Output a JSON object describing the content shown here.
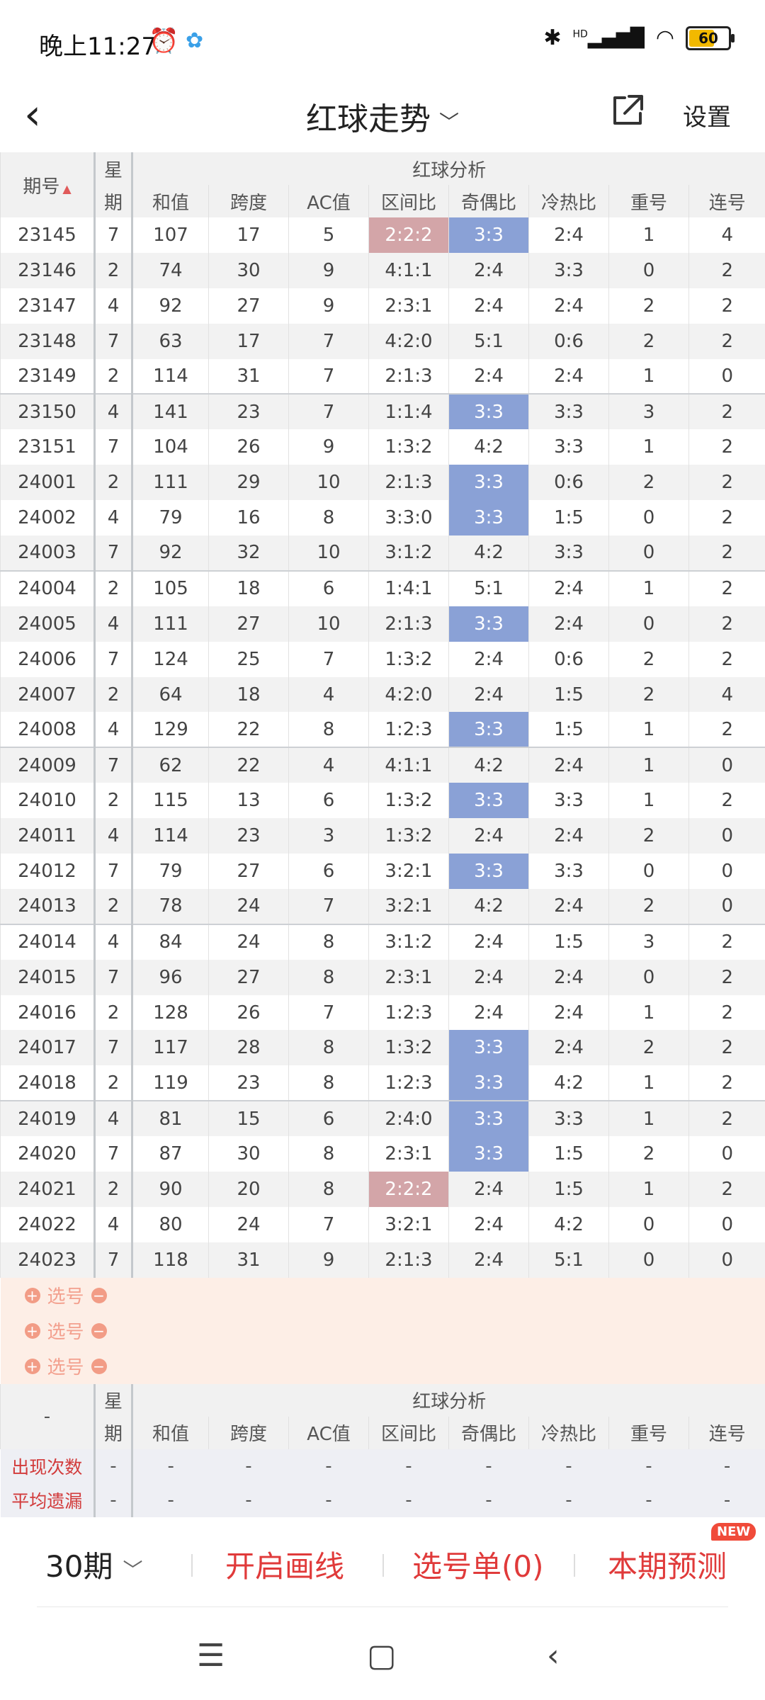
{
  "status": {
    "time": "晚上11:27",
    "battery": "60",
    "signal": "HD"
  },
  "header": {
    "title": "红球走势",
    "settings": "设置"
  },
  "table": {
    "group_title": "红球分析",
    "headers": {
      "period": "期号",
      "week_top": "星",
      "week_bottom": "期",
      "sum": "和值",
      "span": "跨度",
      "ac": "AC值",
      "zone": "区间比",
      "odd_even": "奇偶比",
      "hot_cold": "冷热比",
      "repeat": "重号",
      "consecutive": "连号"
    },
    "rows": [
      [
        "23145",
        "7",
        "107",
        "17",
        "5",
        "2:2:2",
        "3:3",
        "2:4",
        "1",
        "4"
      ],
      [
        "23146",
        "2",
        "74",
        "30",
        "9",
        "4:1:1",
        "2:4",
        "3:3",
        "0",
        "2"
      ],
      [
        "23147",
        "4",
        "92",
        "27",
        "9",
        "2:3:1",
        "2:4",
        "2:4",
        "2",
        "2"
      ],
      [
        "23148",
        "7",
        "63",
        "17",
        "7",
        "4:2:0",
        "5:1",
        "0:6",
        "2",
        "2"
      ],
      [
        "23149",
        "2",
        "114",
        "31",
        "7",
        "2:1:3",
        "2:4",
        "2:4",
        "1",
        "0"
      ],
      [
        "23150",
        "4",
        "141",
        "23",
        "7",
        "1:1:4",
        "3:3",
        "3:3",
        "3",
        "2"
      ],
      [
        "23151",
        "7",
        "104",
        "26",
        "9",
        "1:3:2",
        "4:2",
        "3:3",
        "1",
        "2"
      ],
      [
        "24001",
        "2",
        "111",
        "29",
        "10",
        "2:1:3",
        "3:3",
        "0:6",
        "2",
        "2"
      ],
      [
        "24002",
        "4",
        "79",
        "16",
        "8",
        "3:3:0",
        "3:3",
        "1:5",
        "0",
        "2"
      ],
      [
        "24003",
        "7",
        "92",
        "32",
        "10",
        "3:1:2",
        "4:2",
        "3:3",
        "0",
        "2"
      ],
      [
        "24004",
        "2",
        "105",
        "18",
        "6",
        "1:4:1",
        "5:1",
        "2:4",
        "1",
        "2"
      ],
      [
        "24005",
        "4",
        "111",
        "27",
        "10",
        "2:1:3",
        "3:3",
        "2:4",
        "0",
        "2"
      ],
      [
        "24006",
        "7",
        "124",
        "25",
        "7",
        "1:3:2",
        "2:4",
        "0:6",
        "2",
        "2"
      ],
      [
        "24007",
        "2",
        "64",
        "18",
        "4",
        "4:2:0",
        "2:4",
        "1:5",
        "2",
        "4"
      ],
      [
        "24008",
        "4",
        "129",
        "22",
        "8",
        "1:2:3",
        "3:3",
        "1:5",
        "1",
        "2"
      ],
      [
        "24009",
        "7",
        "62",
        "22",
        "4",
        "4:1:1",
        "4:2",
        "2:4",
        "1",
        "0"
      ],
      [
        "24010",
        "2",
        "115",
        "13",
        "6",
        "1:3:2",
        "3:3",
        "3:3",
        "1",
        "2"
      ],
      [
        "24011",
        "4",
        "114",
        "23",
        "3",
        "1:3:2",
        "2:4",
        "2:4",
        "2",
        "0"
      ],
      [
        "24012",
        "7",
        "79",
        "27",
        "6",
        "3:2:1",
        "3:3",
        "3:3",
        "0",
        "0"
      ],
      [
        "24013",
        "2",
        "78",
        "24",
        "7",
        "3:2:1",
        "4:2",
        "2:4",
        "2",
        "0"
      ],
      [
        "24014",
        "4",
        "84",
        "24",
        "8",
        "3:1:2",
        "2:4",
        "1:5",
        "3",
        "2"
      ],
      [
        "24015",
        "7",
        "96",
        "27",
        "8",
        "2:3:1",
        "2:4",
        "2:4",
        "0",
        "2"
      ],
      [
        "24016",
        "2",
        "128",
        "26",
        "7",
        "1:2:3",
        "2:4",
        "2:4",
        "1",
        "2"
      ],
      [
        "24017",
        "7",
        "117",
        "28",
        "8",
        "1:3:2",
        "3:3",
        "2:4",
        "2",
        "2"
      ],
      [
        "24018",
        "2",
        "119",
        "23",
        "8",
        "1:2:3",
        "3:3",
        "4:2",
        "1",
        "2"
      ],
      [
        "24019",
        "4",
        "81",
        "15",
        "6",
        "2:4:0",
        "3:3",
        "3:3",
        "1",
        "2"
      ],
      [
        "24020",
        "7",
        "87",
        "30",
        "8",
        "2:3:1",
        "3:3",
        "1:5",
        "2",
        "0"
      ],
      [
        "24021",
        "2",
        "90",
        "20",
        "8",
        "2:2:2",
        "2:4",
        "1:5",
        "1",
        "2"
      ],
      [
        "24022",
        "4",
        "80",
        "24",
        "7",
        "3:2:1",
        "2:4",
        "4:2",
        "0",
        "0"
      ],
      [
        "24023",
        "7",
        "118",
        "31",
        "9",
        "2:1:3",
        "2:4",
        "5:1",
        "0",
        "0"
      ]
    ],
    "pick_label": "选号",
    "footer_period": "-",
    "stats": [
      {
        "label": "出现次数",
        "values": [
          "-",
          "-",
          "-",
          "-",
          "-",
          "-",
          "-",
          "-",
          "-"
        ]
      },
      {
        "label": "平均遗漏",
        "values": [
          "-",
          "-",
          "-",
          "-",
          "-",
          "-",
          "-",
          "-",
          "-"
        ]
      }
    ]
  },
  "bottom": {
    "period": "30期",
    "draw_line": "开启画线",
    "selection": "选号单(0)",
    "predict": "本期预测",
    "badge": "NEW"
  },
  "colors": {
    "highlight_blue": "#8aa1d6",
    "highlight_red": "#d3a5a8",
    "accent_red": "#e03a3a"
  }
}
